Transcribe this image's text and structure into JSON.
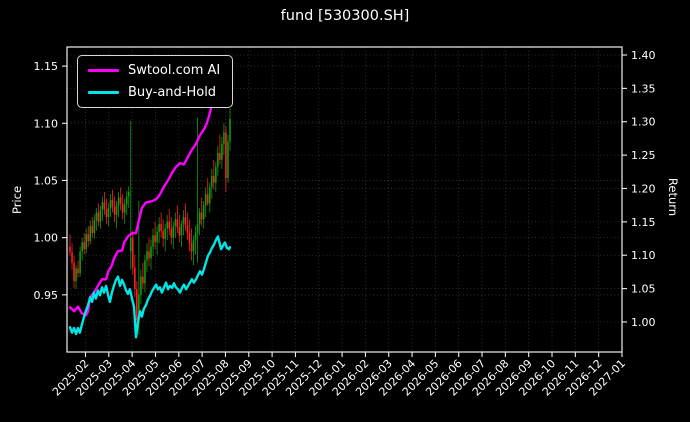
{
  "title": "fund [530300.SH]",
  "legend": {
    "items": [
      {
        "label": "Swtool.com AI",
        "color": "#ff00ff"
      },
      {
        "label": "Buy-and-Hold",
        "color": "#00e5e5"
      }
    ]
  },
  "chart_data": {
    "type": "candlestick+line",
    "title": "fund [530300.SH]",
    "grid": {
      "color": "#3a3a3a",
      "style": "dotted"
    },
    "frame_color": "#efefef",
    "background": "#000000",
    "x_axis": {
      "tick_labels": [
        "2025-02",
        "2025-03",
        "2025-04",
        "2025-05",
        "2025-06",
        "2025-07",
        "2025-08",
        "2025-09",
        "2025-10",
        "2025-11",
        "2025-12",
        "2026-01",
        "2026-02",
        "2026-03",
        "2026-04",
        "2026-05",
        "2026-06",
        "2026-07",
        "2026-08",
        "2026-09",
        "2026-10",
        "2026-11",
        "2026-12",
        "2027-01"
      ]
    },
    "left_axis": {
      "label": "Price",
      "ticks": [
        0.95,
        1.0,
        1.05,
        1.1,
        1.15
      ],
      "tick_labels": [
        "0.95",
        "1.00",
        "1.05",
        "1.10",
        "1.15"
      ],
      "range": [
        0.9,
        1.1667
      ]
    },
    "right_axis": {
      "label": "Return",
      "ticks": [
        1.0,
        1.05,
        1.1,
        1.15,
        1.2,
        1.25,
        1.3,
        1.35,
        1.4
      ],
      "tick_labels": [
        "1.00",
        "1.05",
        "1.10",
        "1.15",
        "1.20",
        "1.25",
        "1.30",
        "1.35",
        "1.40"
      ],
      "range": [
        0.955,
        1.412
      ]
    },
    "candles": {
      "up_color": "#0f9e0f",
      "down_color": "#ff2020",
      "ohlc": [
        [
          0.992,
          1.003,
          0.984,
          0.987
        ],
        [
          0.987,
          0.995,
          0.972,
          0.978
        ],
        [
          0.978,
          0.984,
          0.956,
          0.962
        ],
        [
          0.962,
          0.976,
          0.955,
          0.973
        ],
        [
          0.973,
          0.98,
          0.965,
          0.969
        ],
        [
          0.969,
          0.992,
          0.966,
          0.988
        ],
        [
          0.988,
          1.0,
          0.98,
          0.996
        ],
        [
          0.996,
          1.004,
          0.985,
          0.99
        ],
        [
          0.99,
          1.008,
          0.986,
          1.003
        ],
        [
          1.003,
          1.01,
          0.992,
          0.997
        ],
        [
          0.997,
          1.015,
          0.994,
          1.01
        ],
        [
          1.01,
          1.018,
          1.0,
          1.004
        ],
        [
          1.004,
          1.02,
          0.999,
          1.015
        ],
        [
          1.015,
          1.026,
          1.006,
          1.022
        ],
        [
          1.022,
          1.03,
          1.01,
          1.014
        ],
        [
          1.014,
          1.028,
          1.008,
          1.024
        ],
        [
          1.024,
          1.036,
          1.015,
          1.031
        ],
        [
          1.031,
          1.04,
          1.02,
          1.025
        ],
        [
          1.025,
          1.034,
          1.012,
          1.018
        ],
        [
          1.018,
          1.03,
          1.01,
          1.026
        ],
        [
          1.026,
          1.038,
          1.018,
          1.033
        ],
        [
          1.033,
          1.042,
          1.022,
          1.027
        ],
        [
          1.027,
          1.036,
          1.014,
          1.02
        ],
        [
          1.02,
          1.032,
          1.008,
          1.028
        ],
        [
          1.028,
          1.04,
          1.018,
          1.035
        ],
        [
          1.035,
          1.044,
          1.024,
          1.03
        ],
        [
          1.03,
          1.038,
          1.016,
          1.022
        ],
        [
          1.022,
          1.034,
          1.012,
          1.029
        ],
        [
          1.029,
          1.041,
          1.02,
          1.036
        ],
        [
          1.036,
          1.045,
          1.026,
          1.04
        ],
        [
          0.988,
          1.102,
          0.972,
          1.0
        ],
        [
          1.0,
          1.006,
          0.968,
          0.974
        ],
        [
          0.974,
          0.985,
          0.948,
          0.955
        ],
        [
          0.955,
          0.962,
          0.913,
          0.928
        ],
        [
          0.928,
          1.032,
          0.915,
          0.95
        ],
        [
          0.95,
          0.972,
          0.942,
          0.966
        ],
        [
          0.966,
          0.978,
          0.955,
          0.96
        ],
        [
          0.96,
          0.985,
          0.952,
          0.98
        ],
        [
          0.98,
          0.995,
          0.97,
          0.988
        ],
        [
          0.988,
          1.0,
          0.975,
          0.982
        ],
        [
          0.982,
          0.998,
          0.972,
          0.992
        ],
        [
          0.992,
          1.008,
          0.984,
          1.002
        ],
        [
          1.002,
          1.014,
          0.99,
          0.996
        ],
        [
          0.996,
          1.01,
          0.985,
          1.005
        ],
        [
          1.005,
          1.018,
          0.995,
          1.012
        ],
        [
          1.012,
          1.022,
          1.0,
          1.006
        ],
        [
          1.006,
          1.016,
          0.992,
          0.999
        ],
        [
          0.999,
          1.012,
          0.988,
          1.008
        ],
        [
          1.008,
          1.02,
          0.998,
          1.014
        ],
        [
          1.014,
          1.025,
          1.002,
          1.008
        ],
        [
          1.008,
          1.018,
          0.994,
          1.0
        ],
        [
          1.0,
          1.014,
          0.99,
          1.01
        ],
        [
          1.01,
          1.022,
          1.0,
          1.016
        ],
        [
          1.016,
          1.028,
          1.004,
          1.009
        ],
        [
          1.009,
          1.02,
          0.996,
          1.002
        ],
        [
          1.002,
          1.015,
          0.992,
          1.012
        ],
        [
          1.012,
          1.024,
          1.002,
          1.018
        ],
        [
          1.018,
          1.03,
          1.006,
          1.011
        ],
        [
          1.011,
          1.022,
          0.998,
          1.004
        ],
        [
          1.004,
          1.016,
          0.988,
          0.995
        ],
        [
          0.995,
          1.008,
          0.98,
          0.988
        ],
        [
          0.988,
          1.002,
          0.976,
          0.998
        ],
        [
          0.998,
          1.01,
          0.985,
          1.004
        ],
        [
          1.004,
          1.105,
          0.978,
          1.012
        ],
        [
          1.012,
          1.026,
          1.002,
          1.022
        ],
        [
          1.022,
          1.035,
          1.01,
          1.016
        ],
        [
          1.016,
          1.032,
          1.008,
          1.028
        ],
        [
          1.028,
          1.044,
          1.018,
          1.038
        ],
        [
          1.038,
          1.052,
          1.028,
          1.03
        ],
        [
          1.03,
          1.048,
          1.022,
          1.044
        ],
        [
          1.044,
          1.06,
          1.034,
          1.054
        ],
        [
          1.054,
          1.068,
          1.042,
          1.048
        ],
        [
          1.048,
          1.066,
          1.04,
          1.062
        ],
        [
          1.062,
          1.08,
          1.054,
          1.074
        ],
        [
          1.074,
          1.09,
          1.064,
          1.068
        ],
        [
          1.068,
          1.088,
          1.06,
          1.082
        ],
        [
          1.082,
          1.1,
          1.072,
          1.092
        ],
        [
          1.092,
          1.098,
          1.04,
          1.052
        ],
        [
          1.052,
          1.09,
          1.048,
          1.084
        ],
        [
          1.084,
          1.113,
          1.076,
          1.104
        ]
      ]
    },
    "series": [
      {
        "name": "Swtool.com AI",
        "color": "#ff00ff",
        "axis": "right",
        "points": [
          [
            0,
            1.022
          ],
          [
            2,
            1.016
          ],
          [
            3.9,
            1.023
          ],
          [
            5.9,
            1.013
          ],
          [
            7.9,
            1.01
          ],
          [
            8.9,
            1.016
          ],
          [
            9.9,
            1.037
          ],
          [
            11.8,
            1.044
          ],
          [
            13.8,
            1.054
          ],
          [
            15.8,
            1.064
          ],
          [
            17.8,
            1.064
          ],
          [
            18.8,
            1.075
          ],
          [
            20.7,
            1.085
          ],
          [
            21.7,
            1.095
          ],
          [
            23.7,
            1.106
          ],
          [
            25.7,
            1.107
          ],
          [
            26.7,
            1.119
          ],
          [
            28.6,
            1.128
          ],
          [
            30.6,
            1.133
          ],
          [
            32.6,
            1.133
          ],
          [
            33.6,
            1.147
          ],
          [
            34.6,
            1.16
          ],
          [
            35.5,
            1.171
          ],
          [
            37.5,
            1.179
          ],
          [
            40.5,
            1.181
          ],
          [
            42.5,
            1.184
          ],
          [
            44.4,
            1.191
          ],
          [
            46.4,
            1.203
          ],
          [
            48.4,
            1.212
          ],
          [
            50.4,
            1.224
          ],
          [
            52.3,
            1.232
          ],
          [
            54.3,
            1.238
          ],
          [
            56.3,
            1.236
          ],
          [
            58.3,
            1.248
          ],
          [
            60.2,
            1.258
          ],
          [
            62.2,
            1.267
          ],
          [
            64.2,
            1.28
          ],
          [
            66.2,
            1.289
          ],
          [
            67.6,
            1.298
          ],
          [
            68.6,
            1.308
          ],
          [
            69.6,
            1.32
          ],
          [
            70.6,
            1.334
          ],
          [
            71.6,
            1.346
          ],
          [
            72.6,
            1.356
          ],
          [
            73.6,
            1.365
          ],
          [
            74.6,
            1.37
          ],
          [
            75.5,
            1.371
          ],
          [
            76.5,
            1.37
          ],
          [
            77.5,
            1.366
          ],
          [
            78.5,
            1.378
          ],
          [
            79.5,
            1.385
          ]
        ]
      },
      {
        "name": "Buy-and-Hold",
        "color": "#00e5e5",
        "axis": "right",
        "points": [
          [
            0,
            0.992
          ],
          [
            1,
            0.984
          ],
          [
            2,
            0.991
          ],
          [
            3,
            0.982
          ],
          [
            3.9,
            0.991
          ],
          [
            4.9,
            0.984
          ],
          [
            5.9,
            0.996
          ],
          [
            7.4,
            1.013
          ],
          [
            8.9,
            1.025
          ],
          [
            9.9,
            1.037
          ],
          [
            10.9,
            1.03
          ],
          [
            11.8,
            1.044
          ],
          [
            12.8,
            1.035
          ],
          [
            13.8,
            1.047
          ],
          [
            14.8,
            1.04
          ],
          [
            15.8,
            1.052
          ],
          [
            16.8,
            1.044
          ],
          [
            17.8,
            1.054
          ],
          [
            18.8,
            1.04
          ],
          [
            19.7,
            1.03
          ],
          [
            20.7,
            1.044
          ],
          [
            21.7,
            1.054
          ],
          [
            22.7,
            1.063
          ],
          [
            23.7,
            1.068
          ],
          [
            24.7,
            1.054
          ],
          [
            25.7,
            1.063
          ],
          [
            26.7,
            1.056
          ],
          [
            27.7,
            1.047
          ],
          [
            28.6,
            1.042
          ],
          [
            29.6,
            1.049
          ],
          [
            30.6,
            1.035
          ],
          [
            31.6,
            1.023
          ],
          [
            32.6,
            0.977
          ],
          [
            33.6,
            1.001
          ],
          [
            34.6,
            1.016
          ],
          [
            35.5,
            1.008
          ],
          [
            36.5,
            1.02
          ],
          [
            37.5,
            1.025
          ],
          [
            38.5,
            1.034
          ],
          [
            39.5,
            1.039
          ],
          [
            40.5,
            1.046
          ],
          [
            41.5,
            1.051
          ],
          [
            42.5,
            1.056
          ],
          [
            43.4,
            1.049
          ],
          [
            44.4,
            1.052
          ],
          [
            45.4,
            1.044
          ],
          [
            46.4,
            1.052
          ],
          [
            47.4,
            1.059
          ],
          [
            48.4,
            1.049
          ],
          [
            49.4,
            1.054
          ],
          [
            50.4,
            1.051
          ],
          [
            51.3,
            1.058
          ],
          [
            52.3,
            1.052
          ],
          [
            53.3,
            1.049
          ],
          [
            54.3,
            1.044
          ],
          [
            55.3,
            1.051
          ],
          [
            56.3,
            1.056
          ],
          [
            57.3,
            1.049
          ],
          [
            58.3,
            1.054
          ],
          [
            59.2,
            1.059
          ],
          [
            60.2,
            1.064
          ],
          [
            61.2,
            1.059
          ],
          [
            62.2,
            1.064
          ],
          [
            63.2,
            1.07
          ],
          [
            64.2,
            1.076
          ],
          [
            65.2,
            1.071
          ],
          [
            66.2,
            1.08
          ],
          [
            67.2,
            1.09
          ],
          [
            68.1,
            1.099
          ],
          [
            69.1,
            1.104
          ],
          [
            70.1,
            1.111
          ],
          [
            71.1,
            1.116
          ],
          [
            72.1,
            1.123
          ],
          [
            73.1,
            1.128
          ],
          [
            73.6,
            1.121
          ],
          [
            74.6,
            1.109
          ],
          [
            75.5,
            1.114
          ],
          [
            76.5,
            1.119
          ],
          [
            77.5,
            1.111
          ],
          [
            78.5,
            1.109
          ],
          [
            79,
            1.112
          ]
        ]
      }
    ]
  }
}
